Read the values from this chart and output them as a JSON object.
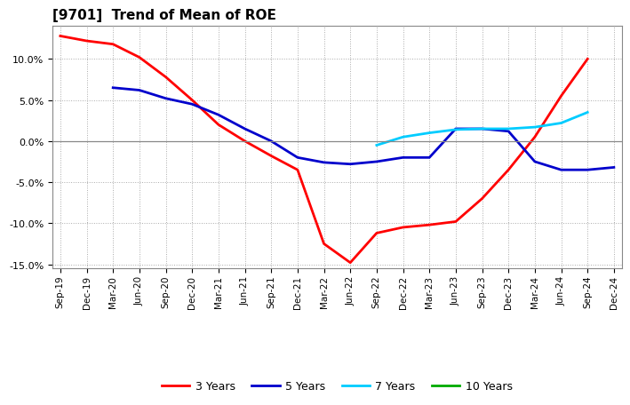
{
  "title": "[9701]  Trend of Mean of ROE",
  "x_labels": [
    "Sep-19",
    "Dec-19",
    "Mar-20",
    "Jun-20",
    "Sep-20",
    "Dec-20",
    "Mar-21",
    "Jun-21",
    "Sep-21",
    "Dec-21",
    "Mar-22",
    "Jun-22",
    "Sep-22",
    "Dec-22",
    "Mar-23",
    "Jun-23",
    "Sep-23",
    "Dec-23",
    "Mar-24",
    "Jun-24",
    "Sep-24",
    "Dec-24"
  ],
  "y3": [
    12.8,
    12.2,
    11.8,
    10.2,
    7.8,
    5.0,
    2.0,
    0.0,
    -1.8,
    -3.5,
    -12.5,
    -14.8,
    -11.2,
    -10.5,
    -10.2,
    -9.8,
    -7.0,
    -3.5,
    0.5,
    5.5,
    10.0,
    null
  ],
  "y5": [
    null,
    null,
    6.5,
    6.2,
    5.2,
    4.5,
    3.2,
    1.5,
    0.0,
    -2.0,
    -2.6,
    -2.8,
    -2.5,
    -2.0,
    -2.0,
    1.5,
    1.5,
    1.2,
    -2.5,
    -3.5,
    -3.5,
    -3.2
  ],
  "y7": [
    null,
    null,
    null,
    null,
    null,
    null,
    null,
    null,
    null,
    null,
    null,
    null,
    -0.5,
    0.5,
    1.0,
    1.4,
    1.5,
    1.5,
    1.7,
    2.2,
    3.5,
    null
  ],
  "y10": [
    null,
    null,
    null,
    null,
    null,
    null,
    null,
    null,
    null,
    null,
    null,
    null,
    null,
    null,
    null,
    null,
    null,
    null,
    null,
    null,
    null,
    null
  ],
  "colors": {
    "3yr": "#ff0000",
    "5yr": "#0000cc",
    "7yr": "#00ccff",
    "10yr": "#00aa00"
  },
  "ylim": [
    -15.5,
    14.0
  ],
  "yticks": [
    -15.0,
    -10.0,
    -5.0,
    0.0,
    5.0,
    10.0
  ],
  "background": "#ffffff",
  "grid_color": "#aaaaaa",
  "legend_labels": [
    "3 Years",
    "5 Years",
    "7 Years",
    "10 Years"
  ]
}
